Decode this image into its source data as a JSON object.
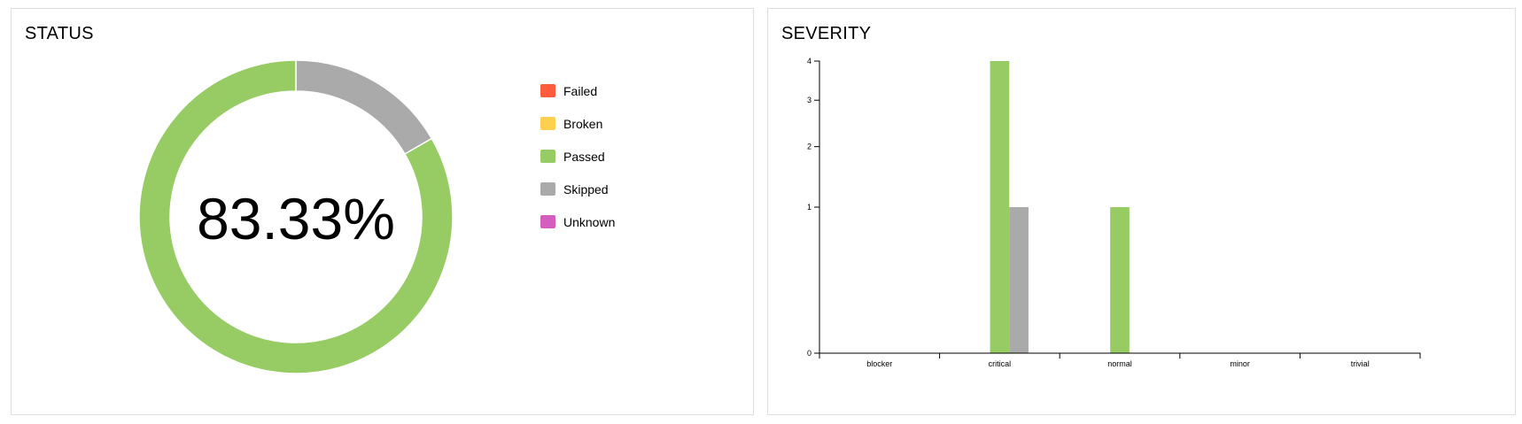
{
  "chart_data": [
    {
      "type": "pie",
      "title": "STATUS",
      "center_label": "83.33%",
      "slices": [
        {
          "name": "Failed",
          "value": 0,
          "color": "#fd5a3e"
        },
        {
          "name": "Broken",
          "value": 0,
          "color": "#ffd050"
        },
        {
          "name": "Passed",
          "value": 5,
          "color": "#97cc64"
        },
        {
          "name": "Skipped",
          "value": 1,
          "color": "#aaaaaa"
        },
        {
          "name": "Unknown",
          "value": 0,
          "color": "#d35ebe"
        }
      ],
      "legend_position": "right"
    },
    {
      "type": "bar",
      "title": "SEVERITY",
      "categories": [
        "blocker",
        "critical",
        "normal",
        "minor",
        "trivial"
      ],
      "series": [
        {
          "color": "#fd5a3e",
          "values": [
            0,
            0,
            0,
            0,
            0
          ]
        },
        {
          "color": "#ffd050",
          "values": [
            0,
            0,
            0,
            0,
            0
          ]
        },
        {
          "color": "#97cc64",
          "values": [
            0,
            4,
            1,
            0,
            0
          ]
        },
        {
          "color": "#aaaaaa",
          "values": [
            0,
            1,
            0,
            0,
            0
          ]
        },
        {
          "color": "#d35ebe",
          "values": [
            0,
            0,
            0,
            0,
            0
          ]
        }
      ],
      "yscale": "sqrt",
      "yticks": [
        0,
        1,
        2,
        3,
        4
      ],
      "ylim": [
        0,
        4
      ],
      "grid": false
    }
  ]
}
